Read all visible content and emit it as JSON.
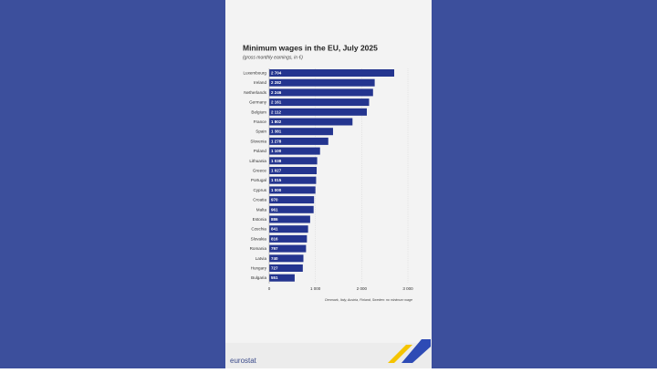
{
  "chart_data": {
    "type": "bar",
    "orientation": "horizontal",
    "title": "Minimum wages in the EU, July 2025",
    "subtitle": "(gross monthly earnings, in €)",
    "categories": [
      "Luxembourg",
      "Ireland",
      "Netherlands",
      "Germany",
      "Belgium",
      "France",
      "Spain",
      "Slovenia",
      "Poland",
      "Lithuania",
      "Greece",
      "Portugal",
      "Cyprus",
      "Croatia",
      "Malta",
      "Estonia",
      "Czechia",
      "Slovakia",
      "Romania",
      "Latvia",
      "Hungary",
      "Bulgaria"
    ],
    "values": [
      2704,
      2282,
      2246,
      2161,
      2112,
      1802,
      1381,
      1278,
      1100,
      1038,
      1027,
      1015,
      1000,
      970,
      961,
      886,
      841,
      816,
      797,
      740,
      727,
      551
    ],
    "value_labels": [
      "2 704",
      "2 282",
      "2 246",
      "2 161",
      "2 112",
      "1 802",
      "1 381",
      "1 278",
      "1 100",
      "1 038",
      "1 027",
      "1 015",
      "1 000",
      "970",
      "961",
      "886",
      "841",
      "816",
      "797",
      "740",
      "727",
      "551"
    ],
    "color": "#24358f",
    "xlim": [
      0,
      3000
    ],
    "xticks": [
      0,
      {
        "value": 1000,
        "label": "1 000"
      },
      {
        "value": 2000,
        "label": "2 000"
      },
      {
        "value": 3000,
        "label": "3 000"
      }
    ],
    "grid": true,
    "note": "Denmark, Italy, Austria, Finland, Sweden: no minimum wage",
    "source": "eurostat"
  }
}
